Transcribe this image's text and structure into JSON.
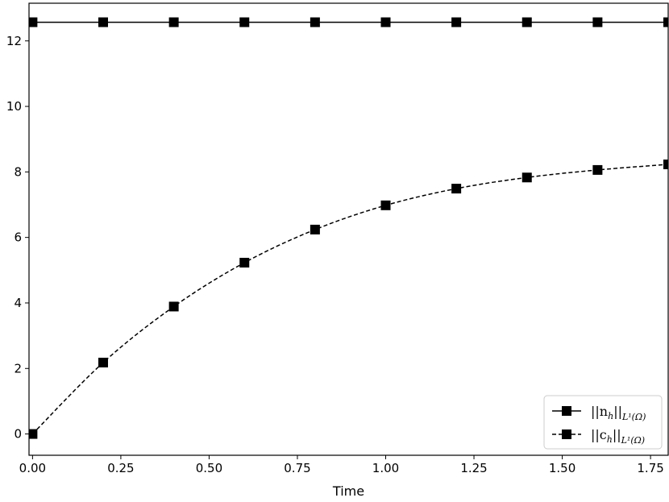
{
  "chart_data": {
    "type": "line",
    "title": "",
    "xlabel": "Time",
    "ylabel": "",
    "xlim": [
      -0.01,
      1.8
    ],
    "ylim": [
      -0.65,
      13.15
    ],
    "xticks": [
      0.0,
      0.25,
      0.5,
      0.75,
      1.0,
      1.25,
      1.5,
      1.75
    ],
    "xtick_labels": [
      "0.00",
      "0.25",
      "0.50",
      "0.75",
      "1.00",
      "1.25",
      "1.50",
      "1.75"
    ],
    "yticks": [
      0,
      2,
      4,
      6,
      8,
      10,
      12
    ],
    "ytick_labels": [
      "0",
      "2",
      "4",
      "6",
      "8",
      "10",
      "12"
    ],
    "grid": false,
    "legend_position": "bottom-right",
    "series": [
      {
        "name_main": "||n",
        "name_sub": "h",
        "name_norm": "||",
        "name_space": "L¹(Ω)",
        "line_style": "solid",
        "marker": "square",
        "color": "#000000",
        "x": [
          0.0,
          0.2,
          0.4,
          0.6,
          0.8,
          1.0,
          1.2,
          1.4,
          1.6,
          1.8
        ],
        "y": [
          12.57,
          12.57,
          12.57,
          12.57,
          12.57,
          12.57,
          12.57,
          12.57,
          12.57,
          12.57
        ]
      },
      {
        "name_main": "||c",
        "name_sub": "h",
        "name_norm": "||",
        "name_space": "L¹(Ω)",
        "line_style": "dashed",
        "marker": "square",
        "color": "#000000",
        "x": [
          0.0,
          0.2,
          0.4,
          0.6,
          0.8,
          1.0,
          1.2,
          1.4,
          1.6,
          1.8
        ],
        "y": [
          0.0,
          2.18,
          3.89,
          5.23,
          6.24,
          6.98,
          7.49,
          7.83,
          8.06,
          8.23
        ]
      }
    ]
  }
}
